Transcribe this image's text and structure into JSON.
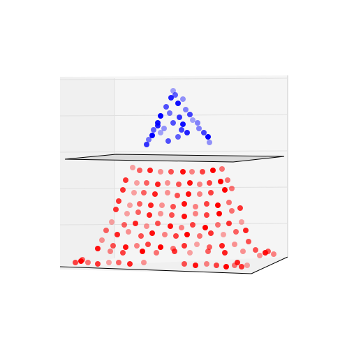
{
  "chart_data": {
    "type": "scatter",
    "projection": "3d",
    "title": "",
    "xlabel": "",
    "ylabel": "",
    "zlabel": "",
    "grid": true,
    "legend": "none",
    "zlim": [
      0,
      1
    ],
    "separator_plane": {
      "z": 0.575,
      "fill": "#d9d9d9",
      "edge": "#000000"
    },
    "series": [
      {
        "color": "#0000ff",
        "points": [
          [
            248,
            130
          ],
          [
            251,
            136
          ],
          [
            245,
            140
          ],
          [
            262,
            142
          ],
          [
            238,
            153
          ],
          [
            255,
            148
          ],
          [
            266,
            157
          ],
          [
            272,
            164
          ],
          [
            230,
            166
          ],
          [
            243,
            162
          ],
          [
            257,
            168
          ],
          [
            276,
            172
          ],
          [
            220,
            186
          ],
          [
            226,
            180
          ],
          [
            235,
            184
          ],
          [
            248,
            176
          ],
          [
            262,
            178
          ],
          [
            285,
            184
          ],
          [
            292,
            190
          ],
          [
            298,
            196
          ],
          [
            213,
            200
          ],
          [
            210,
            207
          ],
          [
            230,
            190
          ],
          [
            255,
            196
          ],
          [
            268,
            190
          ],
          [
            300,
            204
          ],
          [
            241,
            202
          ],
          [
            226,
            176
          ],
          [
            283,
            176
          ],
          [
            260,
            186
          ],
          [
            218,
            194
          ]
        ]
      },
      {
        "color": "#ff0000",
        "points": [
          [
            190,
            240
          ],
          [
            200,
            244
          ],
          [
            215,
            244
          ],
          [
            230,
            246
          ],
          [
            245,
            246
          ],
          [
            262,
            246
          ],
          [
            275,
            246
          ],
          [
            290,
            246
          ],
          [
            305,
            244
          ],
          [
            318,
            242
          ],
          [
            180,
            258
          ],
          [
            196,
            262
          ],
          [
            210,
            262
          ],
          [
            226,
            264
          ],
          [
            240,
            262
          ],
          [
            256,
            264
          ],
          [
            272,
            262
          ],
          [
            286,
            264
          ],
          [
            300,
            262
          ],
          [
            316,
            260
          ],
          [
            326,
            258
          ],
          [
            176,
            272
          ],
          [
            192,
            276
          ],
          [
            206,
            276
          ],
          [
            222,
            278
          ],
          [
            240,
            276
          ],
          [
            254,
            280
          ],
          [
            270,
            278
          ],
          [
            286,
            278
          ],
          [
            302,
            276
          ],
          [
            322,
            272
          ],
          [
            332,
            270
          ],
          [
            170,
            288
          ],
          [
            186,
            294
          ],
          [
            200,
            292
          ],
          [
            216,
            294
          ],
          [
            232,
            294
          ],
          [
            248,
            296
          ],
          [
            264,
            292
          ],
          [
            280,
            296
          ],
          [
            296,
            292
          ],
          [
            312,
            294
          ],
          [
            328,
            290
          ],
          [
            166,
            300
          ],
          [
            182,
            306
          ],
          [
            198,
            304
          ],
          [
            214,
            308
          ],
          [
            230,
            306
          ],
          [
            246,
            308
          ],
          [
            264,
            310
          ],
          [
            280,
            306
          ],
          [
            296,
            308
          ],
          [
            314,
            306
          ],
          [
            332,
            302
          ],
          [
            344,
            298
          ],
          [
            160,
            318
          ],
          [
            178,
            322
          ],
          [
            194,
            320
          ],
          [
            210,
            324
          ],
          [
            226,
            320
          ],
          [
            244,
            324
          ],
          [
            260,
            326
          ],
          [
            276,
            322
          ],
          [
            294,
            326
          ],
          [
            312,
            322
          ],
          [
            328,
            320
          ],
          [
            346,
            318
          ],
          [
            152,
            330
          ],
          [
            168,
            336
          ],
          [
            184,
            332
          ],
          [
            202,
            338
          ],
          [
            218,
            334
          ],
          [
            236,
            336
          ],
          [
            252,
            338
          ],
          [
            268,
            336
          ],
          [
            286,
            338
          ],
          [
            302,
            334
          ],
          [
            320,
            336
          ],
          [
            338,
            332
          ],
          [
            352,
            330
          ],
          [
            146,
            344
          ],
          [
            162,
            352
          ],
          [
            180,
            354
          ],
          [
            196,
            352
          ],
          [
            212,
            350
          ],
          [
            230,
            354
          ],
          [
            248,
            356
          ],
          [
            264,
            352
          ],
          [
            282,
            350
          ],
          [
            300,
            354
          ],
          [
            318,
            352
          ],
          [
            336,
            350
          ],
          [
            356,
            346
          ],
          [
            140,
            356
          ],
          [
            158,
            360
          ],
          [
            176,
            362
          ],
          [
            204,
            360
          ],
          [
            224,
            362
          ],
          [
            250,
            360
          ],
          [
            272,
            362
          ],
          [
            298,
            360
          ],
          [
            322,
            362
          ],
          [
            348,
            360
          ],
          [
            366,
            358
          ],
          [
            380,
            362
          ],
          [
            392,
            364
          ],
          [
            108,
            376
          ],
          [
            116,
            374
          ],
          [
            126,
            376
          ],
          [
            140,
            378
          ],
          [
            156,
            376
          ],
          [
            170,
            376
          ],
          [
            186,
            378
          ],
          [
            206,
            376
          ],
          [
            264,
            378
          ],
          [
            280,
            380
          ],
          [
            296,
            378
          ],
          [
            310,
            380
          ],
          [
            324,
            382
          ],
          [
            336,
            380
          ],
          [
            346,
            382
          ],
          [
            354,
            380
          ],
          [
            118,
            372
          ],
          [
            340,
            376
          ],
          [
            372,
            366
          ],
          [
            384,
            360
          ]
        ]
      }
    ]
  }
}
